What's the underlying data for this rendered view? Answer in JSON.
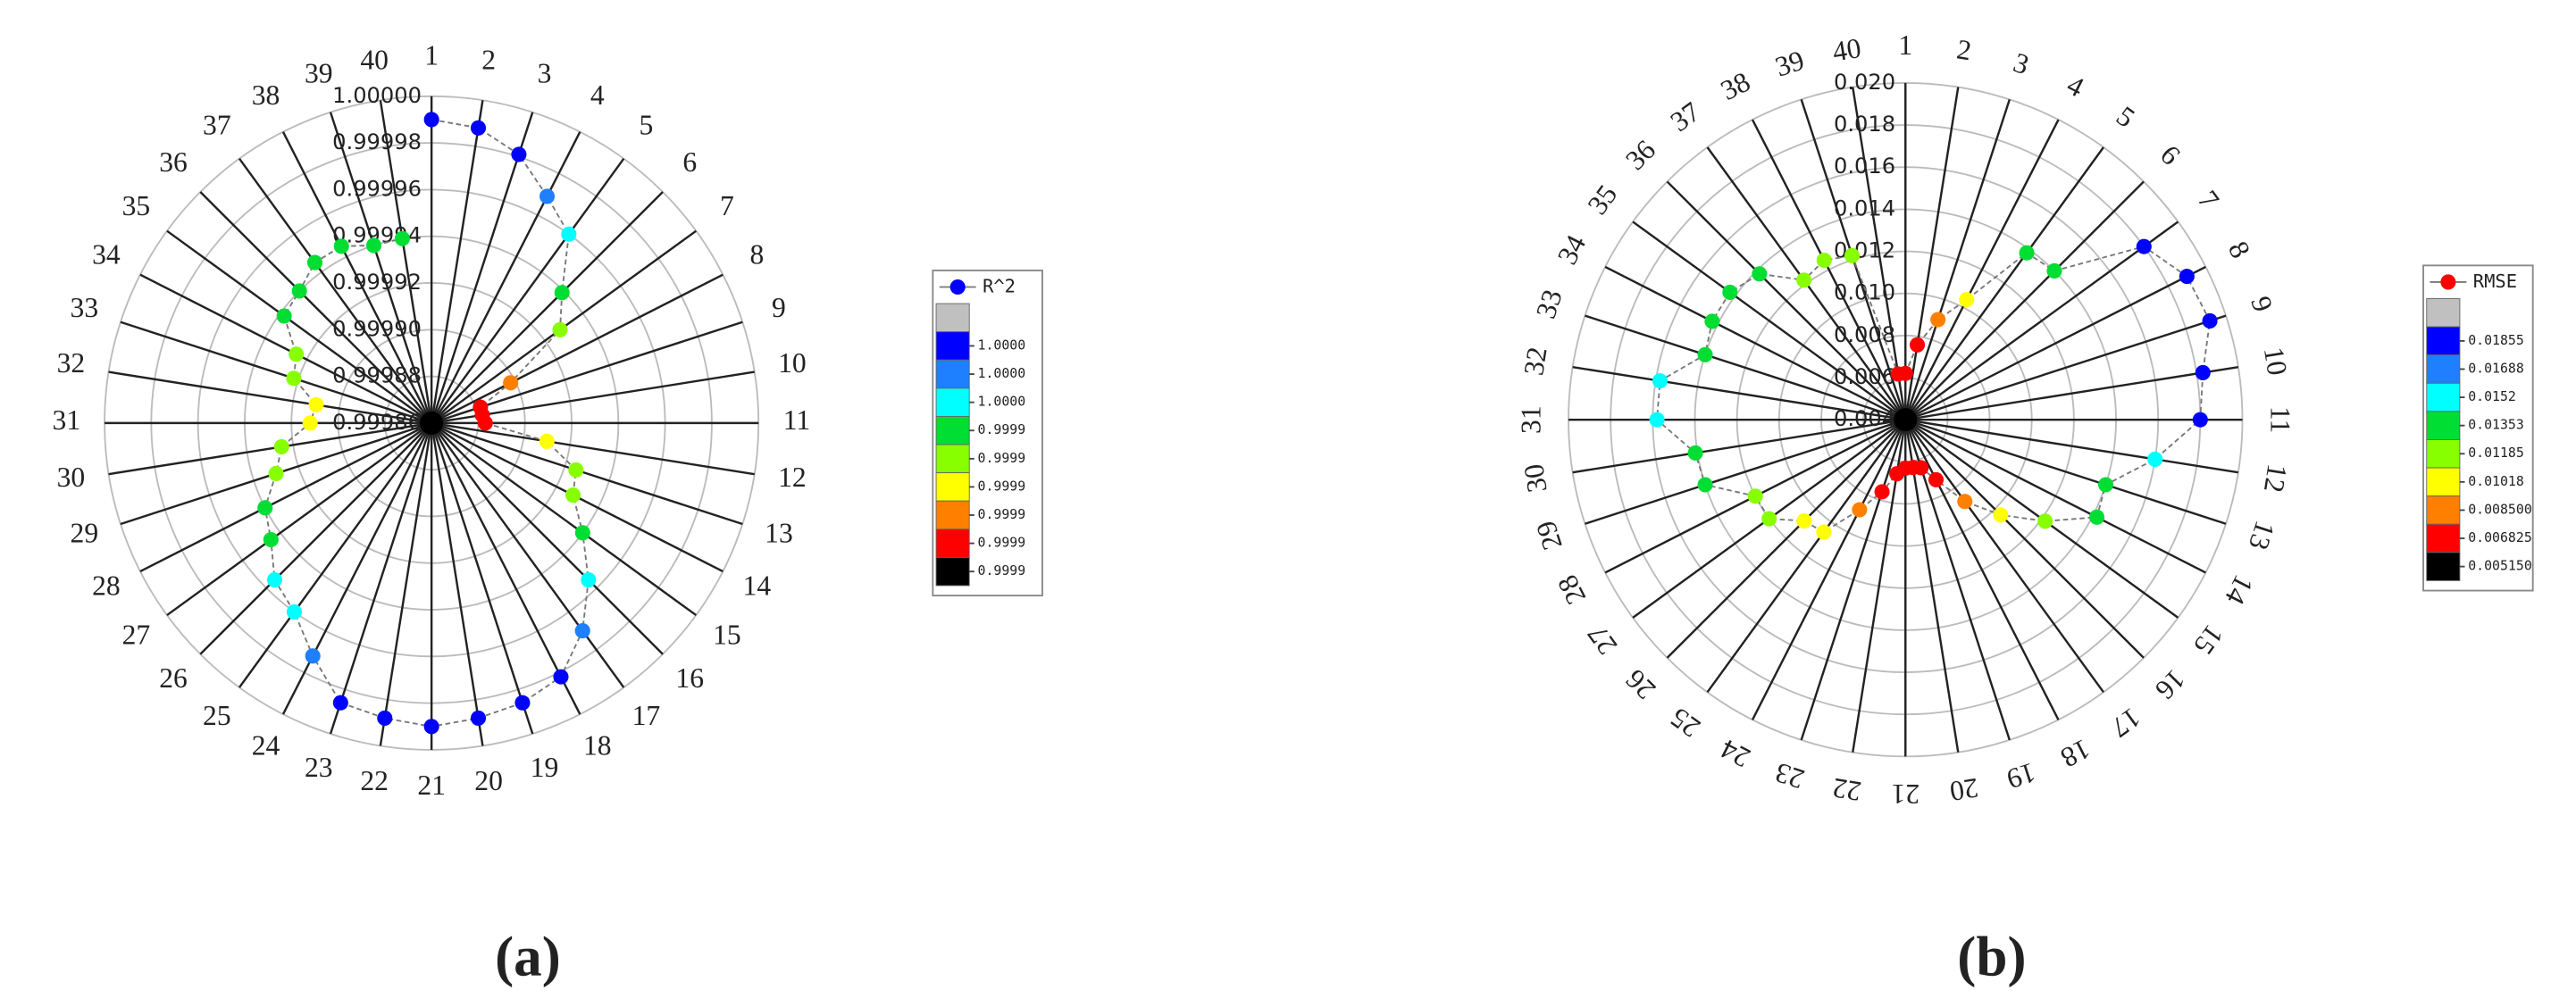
{
  "chart_data": [
    {
      "type": "radar",
      "caption": "(a)",
      "categories": [
        "1",
        "2",
        "3",
        "4",
        "5",
        "6",
        "7",
        "8",
        "9",
        "10",
        "11",
        "12",
        "13",
        "14",
        "15",
        "16",
        "17",
        "18",
        "19",
        "20",
        "21",
        "22",
        "23",
        "24",
        "25",
        "26",
        "27",
        "28",
        "29",
        "30",
        "31",
        "32",
        "33",
        "34",
        "35",
        "36",
        "37",
        "38",
        "39",
        "40"
      ],
      "series": [
        {
          "name": "R^2",
          "color": "#0000ff",
          "values": [
            0.99999,
            0.999988,
            0.999981,
            0.999969,
            0.99996,
            0.999939,
            0.999928,
            0.999898,
            0.999882,
            0.999882,
            0.999883,
            0.99991,
            0.999925,
            0.999928,
            0.99994,
            0.999955,
            0.99997,
            0.999982,
            0.999986,
            0.999988,
            0.99999,
            0.999988,
            0.999986,
            0.999972,
            0.99996,
            0.999955,
            0.999945,
            0.99994,
            0.99993,
            0.999925,
            0.999912,
            0.99991,
            0.999922,
            0.999925,
            0.999938,
            0.99994,
            0.999945,
            0.999945,
            0.99994,
            0.99994
          ]
        }
      ],
      "ylim": [
        0.99986,
        1.0
      ],
      "yticks": [
        {
          "value": 1.0,
          "label": "1.00000"
        },
        0.99998,
        0.99996,
        0.99994,
        0.99992,
        {
          "value": 0.9999,
          "label": "0.99990"
        },
        0.99988,
        0.99986
      ],
      "colorbar": {
        "colors": [
          "#c0c0c0",
          "#0000ff",
          "#1e7fff",
          "#00ffff",
          "#00dd33",
          "#88ff00",
          "#ffff00",
          "#ff8000",
          "#ff0000",
          "#000000"
        ],
        "ticks": [
          {
            "value": 0.999985,
            "label": "1.0000"
          },
          {
            "value": 0.99997,
            "label": "1.0000"
          },
          {
            "value": 0.999955,
            "label": "1.0000"
          },
          {
            "value": 0.99994,
            "label": "0.9999"
          },
          {
            "value": 0.999925,
            "label": "0.9999"
          },
          {
            "value": 0.99991,
            "label": "0.9999"
          },
          {
            "value": 0.999895,
            "label": "0.9999"
          },
          {
            "value": 0.99988,
            "label": "0.9999"
          },
          {
            "value": 0.999865,
            "label": "0.9999"
          }
        ]
      }
    },
    {
      "type": "radar",
      "caption": "(b)",
      "categories": [
        "1",
        "2",
        "3",
        "4",
        "5",
        "6",
        "7",
        "8",
        "9",
        "10",
        "11",
        "12",
        "13",
        "14",
        "15",
        "16",
        "17",
        "18",
        "19",
        "20",
        "21",
        "22",
        "23",
        "24",
        "25",
        "26",
        "27",
        "28",
        "29",
        "30",
        "31",
        "32",
        "33",
        "34",
        "35",
        "36",
        "37",
        "38",
        "39",
        "40"
      ],
      "series": [
        {
          "name": "RMSE",
          "color": "#ff0000",
          "values": [
            0.0062,
            0.0076,
            0.009,
            0.0104,
            0.0138,
            0.014,
            0.018,
            0.019,
            0.0192,
            0.0183,
            0.018,
            0.016,
            0.014,
            0.0142,
            0.0122,
            0.0104,
            0.0088,
            0.0072,
            0.0064,
            0.0063,
            0.0063,
            0.0066,
            0.0076,
            0.0088,
            0.0106,
            0.0108,
            0.012,
            0.012,
            0.014,
            0.0141,
            0.0158,
            0.0158,
            0.014,
            0.0143,
            0.0143,
            0.0138,
            0.0122,
            0.0125,
            0.0122,
            0.0062
          ]
        }
      ],
      "ylim": [
        0.004,
        0.02
      ],
      "yticks": [
        {
          "value": 0.02,
          "label": "0.020"
        },
        0.018,
        0.016,
        0.014,
        0.012,
        {
          "value": 0.01,
          "label": "0.010"
        },
        0.008,
        0.006,
        0.004
      ],
      "colorbar": {
        "colors": [
          "#c0c0c0",
          "#0000ff",
          "#1e7fff",
          "#00ffff",
          "#00dd33",
          "#88ff00",
          "#ffff00",
          "#ff8000",
          "#ff0000",
          "#000000"
        ],
        "ticks": [
          0.01855,
          0.01688,
          0.0152,
          0.01353,
          0.01185,
          0.01018,
          {
            "value": 0.0085,
            "label": "0.008500"
          },
          0.006825,
          {
            "value": 0.00515,
            "label": "0.005150"
          }
        ]
      }
    }
  ]
}
